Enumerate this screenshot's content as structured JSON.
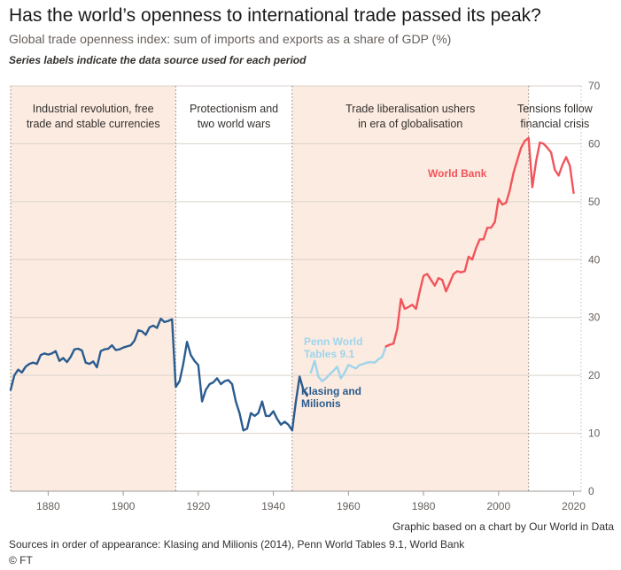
{
  "header": {
    "title": "Has the world’s openness to international trade passed its peak?",
    "subtitle": "Global trade openness index: sum of imports and exports as a share of GDP (%)",
    "note": "Series labels indicate the data source used for each period"
  },
  "footer": {
    "credit": "Graphic based on a chart by Our World in Data",
    "sources": "Sources in order of appearance: Klasing and Milionis (2014), Penn World Tables 9.1, World Bank",
    "copyright": "© FT"
  },
  "colors": {
    "shade": "#fcebe0",
    "klasing": "#2b5c8f",
    "penn": "#9fd4ec",
    "worldbank": "#f2545b",
    "grid": "#d9d2cc"
  },
  "chart_data": {
    "type": "line",
    "xlim": [
      1870,
      2022
    ],
    "ylim": [
      0,
      70
    ],
    "xticks": [
      1880,
      1900,
      1920,
      1940,
      1960,
      1980,
      2000,
      2020
    ],
    "yticks": [
      0,
      10,
      20,
      30,
      40,
      50,
      60,
      70
    ],
    "eras": [
      {
        "start": 1870,
        "end": 1914,
        "shaded": true,
        "label": [
          "Industrial revolution, free",
          "trade and stable currencies"
        ]
      },
      {
        "start": 1914,
        "end": 1945,
        "shaded": false,
        "label": [
          "Protectionism and",
          "two world wars"
        ]
      },
      {
        "start": 1945,
        "end": 2008,
        "shaded": true,
        "label": [
          "Trade liberalisation ushers",
          "in era of globalisation"
        ]
      },
      {
        "start": 2008,
        "end": 2022,
        "shaded": false,
        "label": [
          "Tensions follow",
          "financial crisis"
        ]
      }
    ],
    "series": [
      {
        "name": "Klasing and Milionis",
        "label": [
          "Klasing and",
          "Milionis"
        ],
        "color_key": "klasing",
        "x": [
          1870,
          1871,
          1872,
          1873,
          1874,
          1875,
          1876,
          1877,
          1878,
          1879,
          1880,
          1881,
          1882,
          1883,
          1884,
          1885,
          1886,
          1887,
          1888,
          1889,
          1890,
          1891,
          1892,
          1893,
          1894,
          1895,
          1896,
          1897,
          1898,
          1899,
          1900,
          1901,
          1902,
          1903,
          1904,
          1905,
          1906,
          1907,
          1908,
          1909,
          1910,
          1911,
          1912,
          1913,
          1914,
          1915,
          1916,
          1917,
          1918,
          1919,
          1920,
          1921,
          1922,
          1923,
          1924,
          1925,
          1926,
          1927,
          1928,
          1929,
          1930,
          1931,
          1932,
          1933,
          1934,
          1935,
          1936,
          1937,
          1938,
          1939,
          1940,
          1941,
          1942,
          1943,
          1944,
          1945,
          1946,
          1947,
          1948,
          1949
        ],
        "y": [
          17.5,
          20,
          21,
          20.5,
          21.5,
          22,
          22.2,
          22,
          23.5,
          23.8,
          23.6,
          23.8,
          24.2,
          22.5,
          23,
          22.3,
          23.2,
          24.5,
          24.6,
          24.3,
          22.2,
          22,
          22.4,
          21.4,
          24.2,
          24.5,
          24.6,
          25.2,
          24.4,
          24.5,
          24.8,
          25,
          25.2,
          26,
          27.8,
          27.6,
          27,
          28.3,
          28.6,
          28.2,
          29.8,
          29.2,
          29.4,
          29.7,
          18,
          19,
          22,
          25.8,
          23.5,
          22.5,
          21.8,
          15.5,
          17.5,
          18.5,
          18.8,
          19.5,
          18.5,
          19,
          19.2,
          18.5,
          15.5,
          13.5,
          10.5,
          10.8,
          13.5,
          13,
          13.5,
          15.5,
          13,
          13,
          13.8,
          12.5,
          11.5,
          12,
          11.5,
          10.5,
          15.5,
          19.8,
          17.5,
          16.5
        ]
      },
      {
        "name": "Penn World Tables 9.1",
        "label": [
          "Penn World",
          "Tables 9.1"
        ],
        "color_key": "penn",
        "x": [
          1950,
          1951,
          1952,
          1953,
          1954,
          1955,
          1956,
          1957,
          1958,
          1959,
          1960,
          1961,
          1962,
          1963,
          1964,
          1965,
          1966,
          1967,
          1968,
          1969,
          1970
        ],
        "y": [
          20.5,
          22.5,
          19.8,
          19,
          19.5,
          20.2,
          20.8,
          21.5,
          19.5,
          20.5,
          21.8,
          21.5,
          21.2,
          21.8,
          22,
          22.2,
          22.3,
          22.2,
          22.8,
          23.2,
          25
        ]
      },
      {
        "name": "World Bank",
        "label": [
          "World Bank"
        ],
        "color_key": "worldbank",
        "x": [
          1970,
          1971,
          1972,
          1973,
          1974,
          1975,
          1976,
          1977,
          1978,
          1979,
          1980,
          1981,
          1982,
          1983,
          1984,
          1985,
          1986,
          1987,
          1988,
          1989,
          1990,
          1991,
          1992,
          1993,
          1994,
          1995,
          1996,
          1997,
          1998,
          1999,
          2000,
          2001,
          2002,
          2003,
          2004,
          2005,
          2006,
          2007,
          2008,
          2009,
          2010,
          2011,
          2012,
          2013,
          2014,
          2015,
          2016,
          2017,
          2018,
          2019,
          2020
        ],
        "y": [
          25,
          25.3,
          25.5,
          28,
          33.2,
          31.5,
          31.8,
          32.2,
          31.5,
          34.5,
          37.2,
          37.5,
          36.5,
          35.5,
          36.8,
          36.5,
          34.5,
          36,
          37.5,
          38,
          37.8,
          38,
          40.5,
          40,
          42,
          43.5,
          43.5,
          45.5,
          45.5,
          46.5,
          50.5,
          49.5,
          49.8,
          52,
          55,
          57.2,
          59.3,
          60.5,
          61,
          52.5,
          57,
          60.2,
          60,
          59.3,
          58.5,
          55.5,
          54.5,
          56.3,
          57.7,
          56.2,
          51.5
        ]
      }
    ]
  }
}
